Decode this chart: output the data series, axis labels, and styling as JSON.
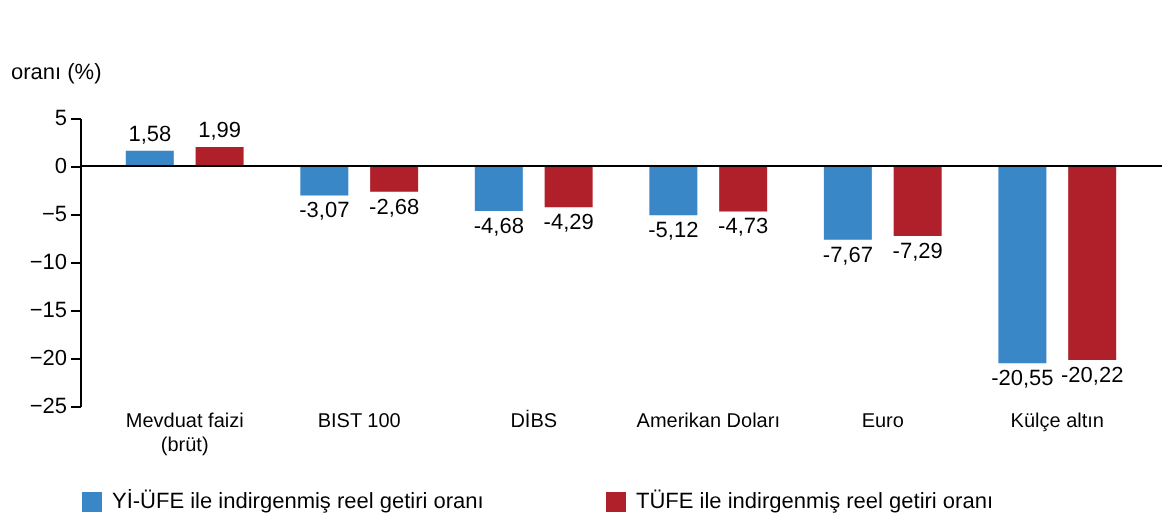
{
  "chart_data": {
    "type": "bar",
    "ylabel": "oranı (%)",
    "categories": [
      "Mevduat faizi\n(brüt)",
      "BIST 100",
      "DİBS",
      "Amerikan Doları",
      "Euro",
      "Külçe altın"
    ],
    "series": [
      {
        "name": "Yİ-ÜFE ile indirgenmiş reel getiri oranı",
        "color": "#3a87c8",
        "values": [
          1.58,
          -3.07,
          -4.68,
          -5.12,
          -7.67,
          -20.55
        ],
        "value_labels": [
          "1,58",
          "-3,07",
          "-4,68",
          "-5,12",
          "-7,67",
          "-20,55"
        ]
      },
      {
        "name": "TÜFE ile indirgenmiş reel getiri oranı",
        "color": "#b0202a",
        "values": [
          1.99,
          -2.68,
          -4.29,
          -4.73,
          -7.29,
          -20.22
        ],
        "value_labels": [
          "1,99",
          "-2,68",
          "-4,29",
          "-4,73",
          "-7,29",
          "-20,22"
        ]
      }
    ],
    "ylim": [
      -25,
      5
    ],
    "yticks": [
      -25,
      -20,
      -15,
      -10,
      -5,
      0,
      5
    ],
    "ref_lines": [
      {
        "axis": "y",
        "value": 0,
        "color": "#000000"
      }
    ],
    "grid": false,
    "legend": "bottom"
  }
}
